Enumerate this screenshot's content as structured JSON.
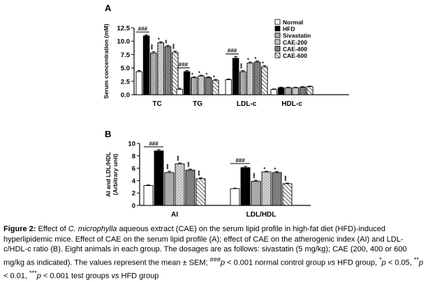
{
  "legend": [
    {
      "name": "Normal",
      "fill": "#ffffff",
      "pattern": "none"
    },
    {
      "name": "HFD",
      "fill": "#000000",
      "pattern": "none"
    },
    {
      "name": "Sivastatin",
      "fill": "#cccccc",
      "pattern": "vertical"
    },
    {
      "name": "CAE-200",
      "fill": "#c8c8c8",
      "pattern": "diagonal"
    },
    {
      "name": "CAE-400",
      "fill": "#8c8c8c",
      "pattern": "dense"
    },
    {
      "name": "CAE-600",
      "fill": "#ffffff",
      "pattern": "diagonal-bold"
    }
  ],
  "chart_data": [
    {
      "panel": "A",
      "type": "bar",
      "ylabel": "Serum concentration (mM)",
      "ylim": [
        0,
        12.5
      ],
      "yticks": [
        "0.0",
        "2.5",
        "5.0",
        "7.5",
        "10.0",
        "12.5"
      ],
      "categories": [
        "TC",
        "TG",
        "LDL-c",
        "HDL-c"
      ],
      "series": [
        {
          "name": "Normal",
          "values": [
            4.3,
            1.0,
            2.8,
            1.0
          ],
          "errors": [
            0.2,
            0.2,
            0.15,
            0.08
          ],
          "marks": [
            "",
            "",
            "",
            ""
          ]
        },
        {
          "name": "HFD",
          "values": [
            11.0,
            4.3,
            6.8,
            1.3
          ],
          "errors": [
            0.2,
            0.2,
            0.3,
            0.1
          ],
          "marks": [
            "",
            "",
            "",
            ""
          ]
        },
        {
          "name": "Sivastatin",
          "values": [
            7.8,
            3.2,
            4.3,
            1.3
          ],
          "errors": [
            0.25,
            0.15,
            0.2,
            0.1
          ],
          "marks": [
            "***",
            "*",
            "***",
            ""
          ]
        },
        {
          "name": "CAE-200",
          "values": [
            9.7,
            3.5,
            5.9,
            1.3
          ],
          "errors": [
            0.2,
            0.15,
            0.2,
            0.1
          ],
          "marks": [
            "*",
            "*",
            "*",
            ""
          ]
        },
        {
          "name": "CAE-400",
          "values": [
            9.0,
            3.2,
            6.1,
            1.4
          ],
          "errors": [
            0.2,
            0.15,
            0.2,
            0.1
          ],
          "marks": [
            "**",
            "*",
            "*",
            ""
          ]
        },
        {
          "name": "CAE-600",
          "values": [
            7.9,
            2.7,
            5.2,
            1.5
          ],
          "errors": [
            0.25,
            0.15,
            0.25,
            0.1
          ],
          "marks": [
            "***",
            "*",
            "*",
            ""
          ]
        }
      ],
      "hash_marks": [
        "###",
        "###",
        "###",
        ""
      ]
    },
    {
      "panel": "B",
      "type": "bar",
      "ylabel": "AI and LDL/HDL (Arbitrary unit)",
      "ylim": [
        0,
        10
      ],
      "yticks": [
        "0",
        "2",
        "4",
        "6",
        "8",
        "10"
      ],
      "categories": [
        "AI",
        "LDL/HDL"
      ],
      "series": [
        {
          "name": "Normal",
          "values": [
            3.2,
            2.7
          ],
          "errors": [
            0.1,
            0.08
          ],
          "marks": [
            "",
            ""
          ]
        },
        {
          "name": "HFD",
          "values": [
            8.8,
            6.1
          ],
          "errors": [
            0.2,
            0.2
          ],
          "marks": [
            "",
            ""
          ]
        },
        {
          "name": "Sivastatin",
          "values": [
            5.3,
            3.9
          ],
          "errors": [
            0.2,
            0.15
          ],
          "marks": [
            "***",
            "***"
          ]
        },
        {
          "name": "CAE-200",
          "values": [
            6.7,
            5.4
          ],
          "errors": [
            0.15,
            0.1
          ],
          "marks": [
            "***",
            "*"
          ]
        },
        {
          "name": "CAE-400",
          "values": [
            5.7,
            5.3
          ],
          "errors": [
            0.15,
            0.15
          ],
          "marks": [
            "***",
            "*"
          ]
        },
        {
          "name": "CAE-600",
          "values": [
            4.3,
            3.5
          ],
          "errors": [
            0.15,
            0.1
          ],
          "marks": [
            "***",
            "***"
          ]
        }
      ],
      "hash_marks": [
        "###",
        "###"
      ]
    }
  ],
  "caption": {
    "label": "Figure 2:",
    "t1": " Effect of ",
    "species": "C. microphylla",
    "t2": " aqueous extract (CAE) on the serum lipid profile in high-fat diet (HFD)-induced hyperlipidemic mice. Effect of CAE on the serum lipid profile (A); effect of CAE on the atherogenic index (AI) and LDL-c/HDL-c ratio (B). Eight animals in each group. The dosages are as follows: sivastatin (5 mg/kg); CAE (200, 400 or 600 mg/kg as indicated). The values represent the mean ± SEM; ",
    "hash_sup": "###",
    "p1": "p",
    "t3": " < 0.001 normal control group ",
    "vs1": "vs",
    "t4": " HFD group, ",
    "star1_sup": "*",
    "p2": "p",
    "t5": " < 0.05, ",
    "star2_sup": "**",
    "p3": "p",
    "t6": " < 0.01, ",
    "star3_sup": "***",
    "p4": "p",
    "t7": " < 0.001 test groups ",
    "vs2": "vs",
    "t8": " HFD group"
  }
}
